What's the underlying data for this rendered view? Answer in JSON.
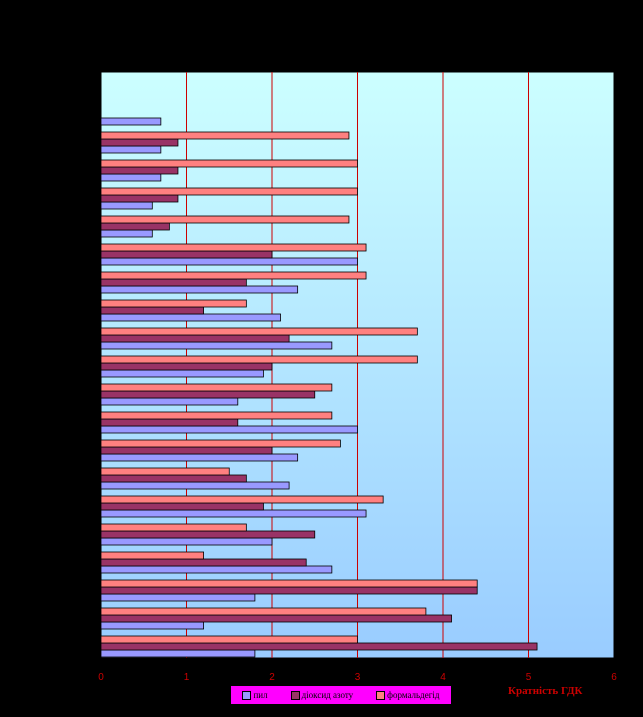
{
  "chart_data": {
    "type": "bar",
    "orientation": "horizontal",
    "xlabel": "Кратність ГДК",
    "xlim": [
      0,
      6
    ],
    "xticks": [
      "0",
      "1",
      "2",
      "3",
      "4",
      "5",
      "6"
    ],
    "grid": "vertical",
    "legend_position": "bottom",
    "series": [
      {
        "name": "пил",
        "color": "#9999ff",
        "values": [
          1.8,
          1.2,
          1.8,
          2.7,
          2.0,
          3.1,
          2.2,
          2.3,
          3.0,
          1.6,
          1.9,
          2.7,
          2.1,
          2.3,
          3.0,
          0.6,
          0.6,
          0.7,
          0.7,
          0.7
        ]
      },
      {
        "name": "діоксид азоту",
        "color": "#993366",
        "values": [
          5.1,
          4.1,
          4.4,
          2.4,
          2.5,
          1.9,
          1.7,
          2.0,
          1.6,
          2.5,
          2.0,
          2.2,
          1.2,
          1.7,
          2.0,
          0.8,
          0.9,
          0.9,
          0.9,
          null
        ]
      },
      {
        "name": "формальдегід",
        "color": "#ff8080",
        "values": [
          3.0,
          3.8,
          4.4,
          1.2,
          1.7,
          3.3,
          1.5,
          2.8,
          2.7,
          2.7,
          3.7,
          3.7,
          1.7,
          3.1,
          3.1,
          2.9,
          3.0,
          3.0,
          2.9,
          null
        ]
      }
    ]
  }
}
